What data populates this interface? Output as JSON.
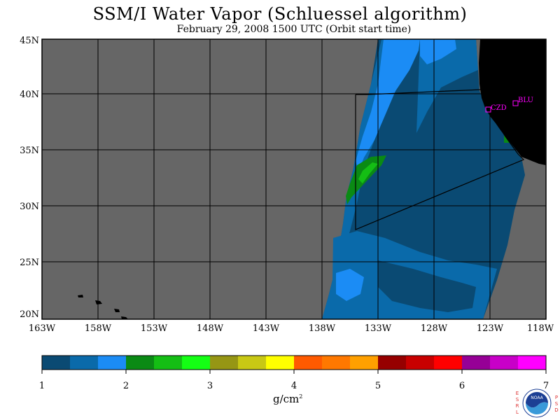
{
  "title": "SSM/I Water Vapor (Schluessel algorithm)",
  "subtitle": "February 29, 2008  1500 UTC  (Orbit start time)",
  "lat_labels": [
    "45N",
    "40N",
    "35N",
    "30N",
    "25N",
    "20N"
  ],
  "lon_labels": [
    "163W",
    "158W",
    "153W",
    "148W",
    "143W",
    "138W",
    "133W",
    "128W",
    "123W",
    "118W"
  ],
  "stations": [
    {
      "code": "CZD",
      "color": "#ff00ff"
    },
    {
      "code": "BLU",
      "color": "#ff00ff"
    }
  ],
  "colorbar": {
    "ticks": [
      "1",
      "2",
      "3",
      "4",
      "5",
      "6",
      "7"
    ],
    "unit_base": "g/cm",
    "unit_exp": "2",
    "colors": [
      "#0a4a73",
      "#0a6aaa",
      "#1b8cf5",
      "#0a8a14",
      "#14be14",
      "#14ff14",
      "#969614",
      "#c8c814",
      "#ffff00",
      "#ff5a00",
      "#ff7800",
      "#ffa000",
      "#960000",
      "#c80000",
      "#ff0000",
      "#960096",
      "#c800c8",
      "#ff00ff"
    ]
  },
  "logo": {
    "left_text": "ESRL",
    "right_text": "PSD",
    "name": "NOAA"
  }
}
